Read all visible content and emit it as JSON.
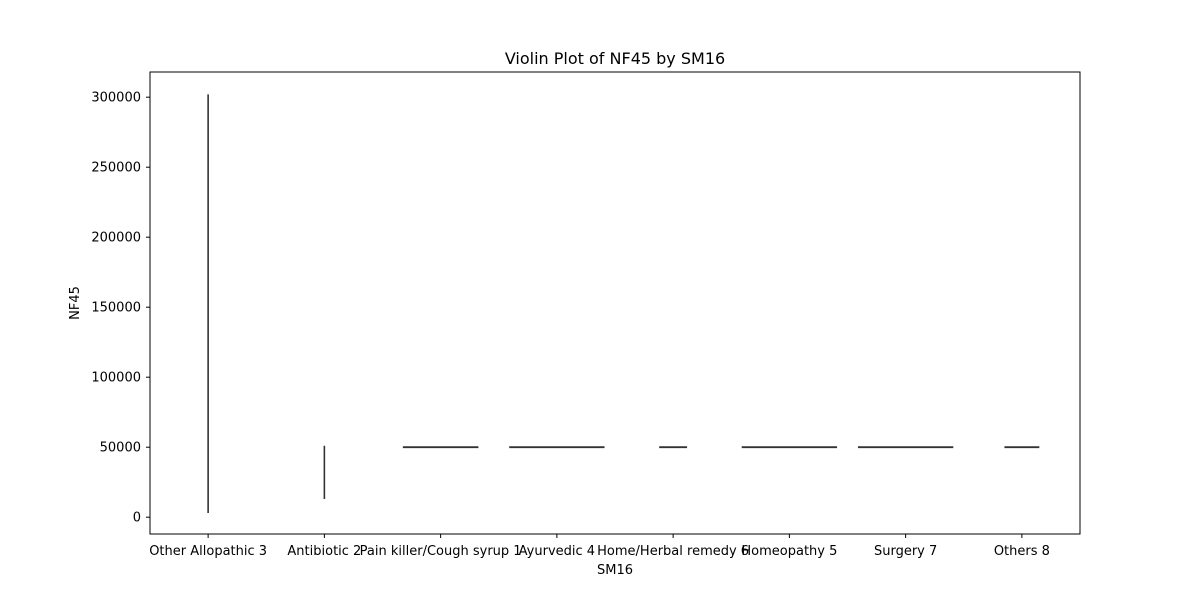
{
  "chart_data": {
    "type": "violin",
    "title": "Violin Plot of NF45 by SM16",
    "xlabel": "SM16",
    "ylabel": "NF45",
    "categories": [
      "Other Allopathic 3",
      "Antibiotic 2",
      "Pain killer/Cough syrup 1",
      "Ayurvedic 4",
      "Home/Herbal remedy 6",
      "Homeopathy 5",
      "Surgery 7",
      "Others 8"
    ],
    "yticks": [
      0,
      50000,
      100000,
      150000,
      200000,
      250000,
      300000
    ],
    "ylim": [
      -12000,
      318000
    ],
    "violins": [
      {
        "category": "Other Allopathic 3",
        "min": 3000,
        "max": 302000,
        "shape": "vertical"
      },
      {
        "category": "Antibiotic 2",
        "min": 13000,
        "max": 51000,
        "shape": "vertical"
      },
      {
        "category": "Pain killer/Cough syrup 1",
        "value": 50000,
        "width": 0.65,
        "shape": "flat"
      },
      {
        "category": "Ayurvedic 4",
        "value": 50000,
        "width": 0.82,
        "shape": "flat"
      },
      {
        "category": "Home/Herbal remedy 6",
        "value": 50000,
        "width": 0.24,
        "shape": "flat"
      },
      {
        "category": "Homeopathy 5",
        "value": 50000,
        "width": 0.82,
        "shape": "flat"
      },
      {
        "category": "Surgery 7",
        "value": 50000,
        "width": 0.82,
        "shape": "flat"
      },
      {
        "category": "Others 8",
        "value": 50000,
        "width": 0.3,
        "shape": "flat"
      }
    ],
    "colors": {
      "stroke": "#333333",
      "axis": "#000000"
    },
    "grid": false,
    "legend": "none"
  }
}
